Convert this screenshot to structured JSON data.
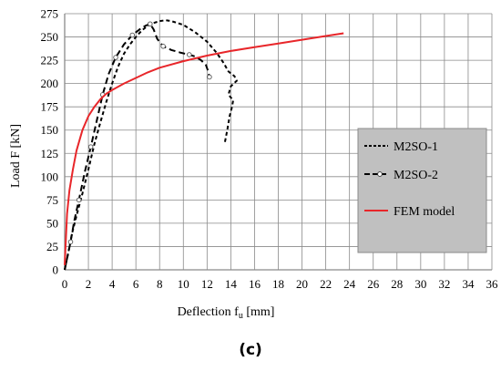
{
  "chart_data": {
    "type": "line",
    "xlabel": "Deflection  f",
    "xlabel_sub": "u",
    "xlabel_unit": " [mm]",
    "ylabel": "Load F [kN]",
    "xlim": [
      0,
      36
    ],
    "ylim": [
      0,
      275
    ],
    "x_ticks": [
      0,
      2,
      4,
      6,
      8,
      10,
      12,
      14,
      16,
      18,
      20,
      22,
      24,
      26,
      28,
      30,
      32,
      34,
      36
    ],
    "y_ticks": [
      0,
      25,
      50,
      75,
      100,
      125,
      150,
      175,
      200,
      225,
      250,
      275
    ],
    "grid": true,
    "legend_position": "right",
    "series": [
      {
        "name": "M2SO-1",
        "style": "dashed",
        "color": "#000000",
        "points": [
          [
            0,
            0
          ],
          [
            0.3,
            18
          ],
          [
            0.6,
            38
          ],
          [
            1,
            58
          ],
          [
            1.5,
            82
          ],
          [
            2,
            108
          ],
          [
            2.5,
            135
          ],
          [
            3,
            158
          ],
          [
            3.5,
            180
          ],
          [
            4,
            200
          ],
          [
            4.5,
            218
          ],
          [
            5,
            232
          ],
          [
            5.5,
            242
          ],
          [
            6,
            250
          ],
          [
            6.5,
            257
          ],
          [
            7,
            262
          ],
          [
            7.5,
            265
          ],
          [
            8,
            267
          ],
          [
            8.5,
            268
          ],
          [
            9,
            267
          ],
          [
            10,
            263
          ],
          [
            11,
            255
          ],
          [
            12,
            245
          ],
          [
            12.8,
            233
          ],
          [
            13.4,
            222
          ],
          [
            13.8,
            213
          ],
          [
            14.3,
            208
          ],
          [
            14.5,
            203
          ],
          [
            14,
            197
          ],
          [
            13.8,
            188
          ],
          [
            14.2,
            182
          ],
          [
            14.1,
            175
          ],
          [
            13.9,
            165
          ],
          [
            13.7,
            150
          ],
          [
            13.5,
            137
          ]
        ]
      },
      {
        "name": "M2SO-2",
        "style": "dashed-marker",
        "color": "#000000",
        "points": [
          [
            0,
            0
          ],
          [
            0.2,
            12
          ],
          [
            0.5,
            30
          ],
          [
            0.8,
            52
          ],
          [
            1.2,
            75
          ],
          [
            1.7,
            105
          ],
          [
            2.2,
            132
          ],
          [
            2.7,
            160
          ],
          [
            3.2,
            188
          ],
          [
            3.7,
            210
          ],
          [
            4.3,
            228
          ],
          [
            5,
            242
          ],
          [
            5.7,
            252
          ],
          [
            6.3,
            258
          ],
          [
            6.8,
            262
          ],
          [
            7.2,
            264
          ],
          [
            7.5,
            258
          ],
          [
            7.8,
            248
          ],
          [
            8.3,
            240
          ],
          [
            9,
            236
          ],
          [
            9.8,
            233
          ],
          [
            10.5,
            231
          ],
          [
            11,
            229
          ],
          [
            11.5,
            225
          ],
          [
            11.9,
            220
          ],
          [
            12.1,
            213
          ],
          [
            12.2,
            207
          ]
        ],
        "markers": [
          [
            0.5,
            30
          ],
          [
            1.2,
            75
          ],
          [
            2.2,
            132
          ],
          [
            3.2,
            188
          ],
          [
            4.3,
            228
          ],
          [
            5.7,
            252
          ],
          [
            7.2,
            264
          ],
          [
            8.3,
            240
          ],
          [
            10.5,
            231
          ],
          [
            12.2,
            207
          ]
        ]
      },
      {
        "name": "FEM model",
        "style": "solid",
        "color": "#e8262a",
        "points": [
          [
            0,
            5
          ],
          [
            0.2,
            60
          ],
          [
            0.4,
            85
          ],
          [
            0.7,
            108
          ],
          [
            1,
            128
          ],
          [
            1.5,
            150
          ],
          [
            2,
            165
          ],
          [
            2.5,
            175
          ],
          [
            3,
            183
          ],
          [
            3.5,
            189
          ],
          [
            4,
            193
          ],
          [
            5,
            200
          ],
          [
            6,
            206
          ],
          [
            7,
            212
          ],
          [
            8,
            217
          ],
          [
            10,
            224
          ],
          [
            12,
            230
          ],
          [
            14,
            235
          ],
          [
            16,
            239
          ],
          [
            18,
            243
          ],
          [
            20,
            247
          ],
          [
            22,
            251
          ],
          [
            23.5,
            254
          ]
        ]
      }
    ]
  },
  "caption": "(c)"
}
